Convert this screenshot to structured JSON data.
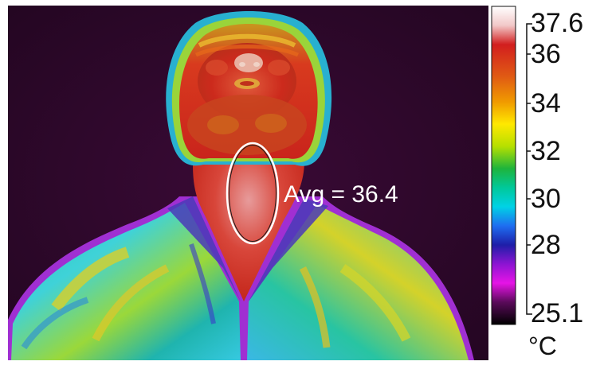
{
  "measurement": {
    "label": "Avg = 36.4"
  },
  "scale": {
    "max_label": "37.6",
    "min_label": "25.1",
    "ticks": [
      "36",
      "34",
      "32",
      "30",
      "28"
    ],
    "unit": "°C",
    "colors": [
      "#ffffff",
      "#f2c8c8",
      "#d21e1e",
      "#e05a14",
      "#f09a00",
      "#ffe800",
      "#b6e000",
      "#1eb43c",
      "#00c89a",
      "#00d2e6",
      "#1e6ef0",
      "#1e1ea8",
      "#8c14d2",
      "#e614e6",
      "#5a0a5a",
      "#000000"
    ]
  }
}
